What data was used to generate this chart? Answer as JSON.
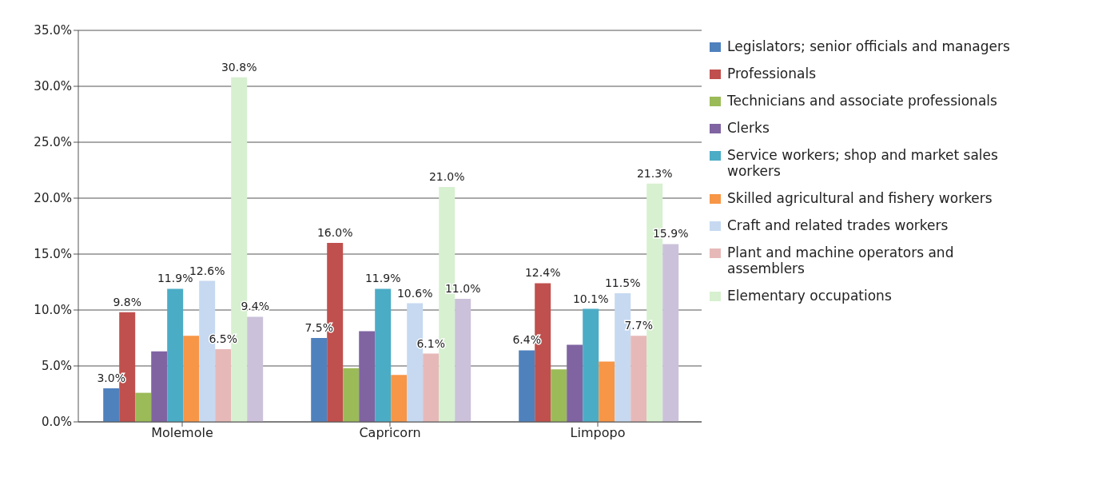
{
  "chart_data": {
    "type": "bar",
    "categories": [
      "Molemole",
      "Capricorn",
      "Limpopo"
    ],
    "series": [
      {
        "name": "Legislators; senior officials and managers",
        "color": "#4f81bd",
        "values": [
          3.0,
          7.5,
          6.4
        ],
        "value_labels": [
          "3.0%",
          "7.5%",
          "6.4%"
        ]
      },
      {
        "name": "Professionals",
        "color": "#c0504d",
        "values": [
          9.8,
          16.0,
          12.4
        ],
        "value_labels": [
          "9.8%",
          "16.0%",
          "12.4%"
        ]
      },
      {
        "name": "Technicians and associate professionals",
        "color": "#9bbb59",
        "values": [
          2.6,
          4.8,
          4.7
        ]
      },
      {
        "name": "Clerks",
        "color": "#8064a2",
        "values": [
          6.3,
          8.1,
          6.9
        ]
      },
      {
        "name": "Service workers; shop and market sales workers",
        "color": "#4bacc6",
        "values": [
          11.9,
          11.9,
          10.1
        ],
        "value_labels": [
          "11.9%",
          "11.9%",
          "10.1%"
        ]
      },
      {
        "name": "Skilled agricultural and fishery workers",
        "color": "#f79646",
        "values": [
          7.7,
          4.2,
          5.4
        ]
      },
      {
        "name": "Craft and related trades workers",
        "color": "#c6d9f1",
        "values": [
          12.6,
          10.6,
          11.5
        ],
        "value_labels": [
          "12.6%",
          "10.6%",
          "11.5%"
        ]
      },
      {
        "name": "Plant and machine operators and assemblers",
        "color": "#e6b9b8",
        "values": [
          6.5,
          6.1,
          7.7
        ],
        "value_labels": [
          "6.5%",
          "6.1%",
          "7.7%"
        ]
      },
      {
        "name": "Elementary occupations",
        "color": "#d7f0d0",
        "values": [
          30.8,
          21.0,
          21.3
        ],
        "value_labels": [
          "30.8%",
          "21.0%",
          "21.3%"
        ]
      },
      {
        "color": "#ccc1da",
        "values": [
          9.4,
          11.0,
          15.9
        ],
        "value_labels": [
          "9.4%",
          "11.0%",
          "15.9%"
        ]
      }
    ],
    "ylim": [
      0,
      35
    ],
    "yticks": [
      {
        "value": 0,
        "label": "0.0%"
      },
      {
        "value": 5,
        "label": "5.0%"
      },
      {
        "value": 10,
        "label": "10.0%"
      },
      {
        "value": 15,
        "label": "15.0%"
      },
      {
        "value": 20,
        "label": "20.0%"
      },
      {
        "value": 25,
        "label": "25.0%"
      },
      {
        "value": 30,
        "label": "30.0%"
      },
      {
        "value": 35,
        "label": "35.0%"
      }
    ],
    "grid": "y",
    "legend": "right"
  }
}
